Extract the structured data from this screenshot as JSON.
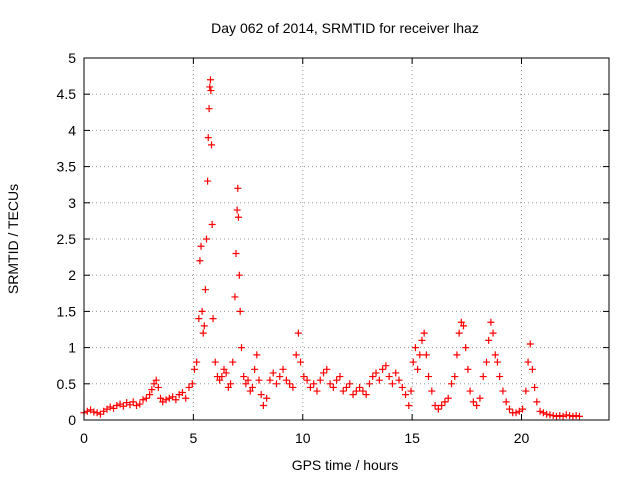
{
  "chart_data": {
    "type": "scatter",
    "title": "Day 062 of 2014, SRMTID for receiver lhaz",
    "xlabel": "GPS time / hours",
    "ylabel": "SRMTID / TECUs",
    "xlim": [
      0,
      24
    ],
    "ylim": [
      0,
      5
    ],
    "xticks": [
      0,
      5,
      10,
      15,
      20
    ],
    "yticks": [
      0,
      0.5,
      1,
      1.5,
      2,
      2.5,
      3,
      3.5,
      4,
      4.5,
      5
    ],
    "grid": true,
    "marker": "+",
    "series": [
      {
        "color": "#ff0000",
        "x": [
          0.0,
          0.15,
          0.3,
          0.45,
          0.6,
          0.75,
          0.9,
          1.05,
          1.2,
          1.35,
          1.5,
          1.65,
          1.8,
          1.95,
          2.1,
          2.25,
          2.4,
          2.55,
          2.7,
          2.85,
          3.0,
          3.1,
          3.2,
          3.3,
          3.4,
          3.5,
          3.6,
          3.75,
          3.9,
          4.05,
          4.2,
          4.35,
          4.5,
          4.65,
          4.8,
          4.95,
          5.05,
          5.15,
          5.25,
          5.3,
          5.35,
          5.4,
          5.45,
          5.5,
          5.55,
          5.6,
          5.65,
          5.68,
          5.72,
          5.75,
          5.78,
          5.8,
          5.83,
          5.86,
          5.9,
          6.0,
          6.1,
          6.2,
          6.3,
          6.4,
          6.5,
          6.6,
          6.7,
          6.8,
          6.9,
          6.95,
          7.0,
          7.03,
          7.06,
          7.1,
          7.14,
          7.2,
          7.3,
          7.4,
          7.5,
          7.6,
          7.7,
          7.8,
          7.9,
          8.0,
          8.1,
          8.2,
          8.35,
          8.5,
          8.65,
          8.8,
          8.95,
          9.1,
          9.25,
          9.4,
          9.55,
          9.7,
          9.8,
          9.9,
          10.05,
          10.2,
          10.35,
          10.5,
          10.65,
          10.8,
          10.95,
          11.1,
          11.25,
          11.4,
          11.55,
          11.7,
          11.85,
          12.0,
          12.15,
          12.3,
          12.45,
          12.6,
          12.75,
          12.9,
          13.05,
          13.2,
          13.35,
          13.5,
          13.65,
          13.8,
          13.95,
          14.1,
          14.25,
          14.4,
          14.55,
          14.7,
          14.85,
          14.95,
          15.05,
          15.15,
          15.25,
          15.35,
          15.45,
          15.55,
          15.65,
          15.75,
          15.9,
          16.05,
          16.2,
          16.35,
          16.5,
          16.65,
          16.8,
          16.95,
          17.05,
          17.15,
          17.25,
          17.35,
          17.45,
          17.55,
          17.65,
          17.8,
          17.95,
          18.1,
          18.25,
          18.4,
          18.5,
          18.6,
          18.7,
          18.8,
          18.9,
          19.0,
          19.15,
          19.3,
          19.45,
          19.6,
          19.75,
          19.9,
          20.05,
          20.2,
          20.3,
          20.4,
          20.5,
          20.6,
          20.7,
          20.85,
          21.0,
          21.15,
          21.3,
          21.45,
          21.6,
          21.75,
          21.9,
          22.05,
          22.2,
          22.35,
          22.5,
          22.65
        ],
        "y": [
          0.1,
          0.12,
          0.14,
          0.11,
          0.1,
          0.08,
          0.12,
          0.15,
          0.18,
          0.16,
          0.2,
          0.22,
          0.19,
          0.24,
          0.21,
          0.25,
          0.2,
          0.22,
          0.28,
          0.3,
          0.35,
          0.42,
          0.5,
          0.55,
          0.45,
          0.3,
          0.25,
          0.28,
          0.3,
          0.32,
          0.28,
          0.35,
          0.38,
          0.3,
          0.45,
          0.5,
          0.7,
          0.8,
          1.4,
          2.2,
          2.4,
          1.5,
          1.2,
          1.3,
          1.8,
          2.5,
          3.3,
          3.9,
          4.3,
          4.6,
          4.7,
          4.55,
          3.8,
          2.7,
          1.4,
          0.8,
          0.6,
          0.55,
          0.6,
          0.7,
          0.65,
          0.45,
          0.5,
          0.8,
          1.7,
          2.3,
          2.9,
          3.2,
          2.8,
          2.0,
          1.5,
          1.0,
          0.6,
          0.5,
          0.55,
          0.4,
          0.45,
          0.7,
          0.9,
          0.55,
          0.35,
          0.2,
          0.3,
          0.55,
          0.65,
          0.5,
          0.6,
          0.7,
          0.55,
          0.5,
          0.45,
          0.9,
          1.2,
          0.8,
          0.6,
          0.55,
          0.45,
          0.5,
          0.4,
          0.55,
          0.65,
          0.7,
          0.5,
          0.45,
          0.55,
          0.6,
          0.4,
          0.45,
          0.5,
          0.35,
          0.4,
          0.45,
          0.4,
          0.35,
          0.5,
          0.6,
          0.65,
          0.55,
          0.7,
          0.75,
          0.6,
          0.5,
          0.65,
          0.55,
          0.45,
          0.35,
          0.2,
          0.4,
          0.8,
          1.0,
          0.7,
          0.9,
          1.1,
          1.2,
          0.9,
          0.6,
          0.4,
          0.2,
          0.15,
          0.2,
          0.25,
          0.3,
          0.5,
          0.6,
          0.9,
          1.2,
          1.35,
          1.3,
          1.0,
          0.7,
          0.4,
          0.25,
          0.2,
          0.3,
          0.6,
          0.8,
          1.1,
          1.35,
          1.2,
          0.9,
          0.8,
          0.6,
          0.4,
          0.25,
          0.15,
          0.1,
          0.1,
          0.12,
          0.15,
          0.4,
          0.8,
          1.05,
          0.7,
          0.45,
          0.25,
          0.12,
          0.1,
          0.08,
          0.07,
          0.06,
          0.05,
          0.06,
          0.05,
          0.07,
          0.06,
          0.05,
          0.06,
          0.05
        ]
      }
    ]
  }
}
